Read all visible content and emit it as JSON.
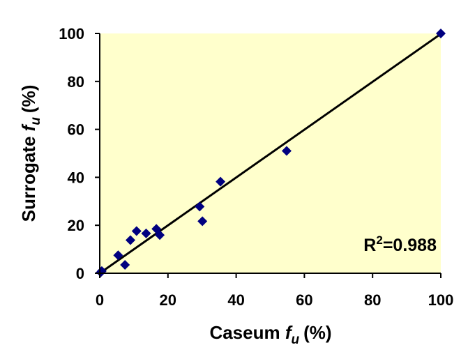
{
  "chart_data": {
    "type": "scatter",
    "xlabel": {
      "main": "Caseum ",
      "var": "f",
      "sub": "u",
      "unit": "(%)"
    },
    "ylabel": {
      "main": "Surrogate ",
      "var": "f",
      "sub": "u",
      "unit": "(%)"
    },
    "xlim": [
      0,
      100
    ],
    "ylim": [
      0,
      100
    ],
    "xticks": [
      "0",
      "20",
      "40",
      "60",
      "80",
      "100"
    ],
    "yticks": [
      "0",
      "20",
      "40",
      "60",
      "80",
      "100"
    ],
    "grid": false,
    "background_color": "#ffffcc",
    "marker_color": "#000080",
    "marker": "diamond",
    "series": [
      {
        "x": [
          0.3,
          0.6,
          5.4,
          7.4,
          9.0,
          10.8,
          13.6,
          16.6,
          17.6,
          29.3,
          30.1,
          35.4,
          54.8,
          100
        ],
        "y": [
          0.4,
          0.9,
          7.5,
          3.5,
          13.8,
          17.6,
          16.6,
          18.5,
          15.9,
          27.8,
          21.7,
          38.2,
          51.0,
          100
        ]
      }
    ],
    "trendline": {
      "x": [
        0,
        100
      ],
      "y": [
        0,
        99.8
      ],
      "color": "#000000"
    },
    "annotation": {
      "base": "R",
      "sup": "2",
      "rest": "=0.988"
    }
  }
}
